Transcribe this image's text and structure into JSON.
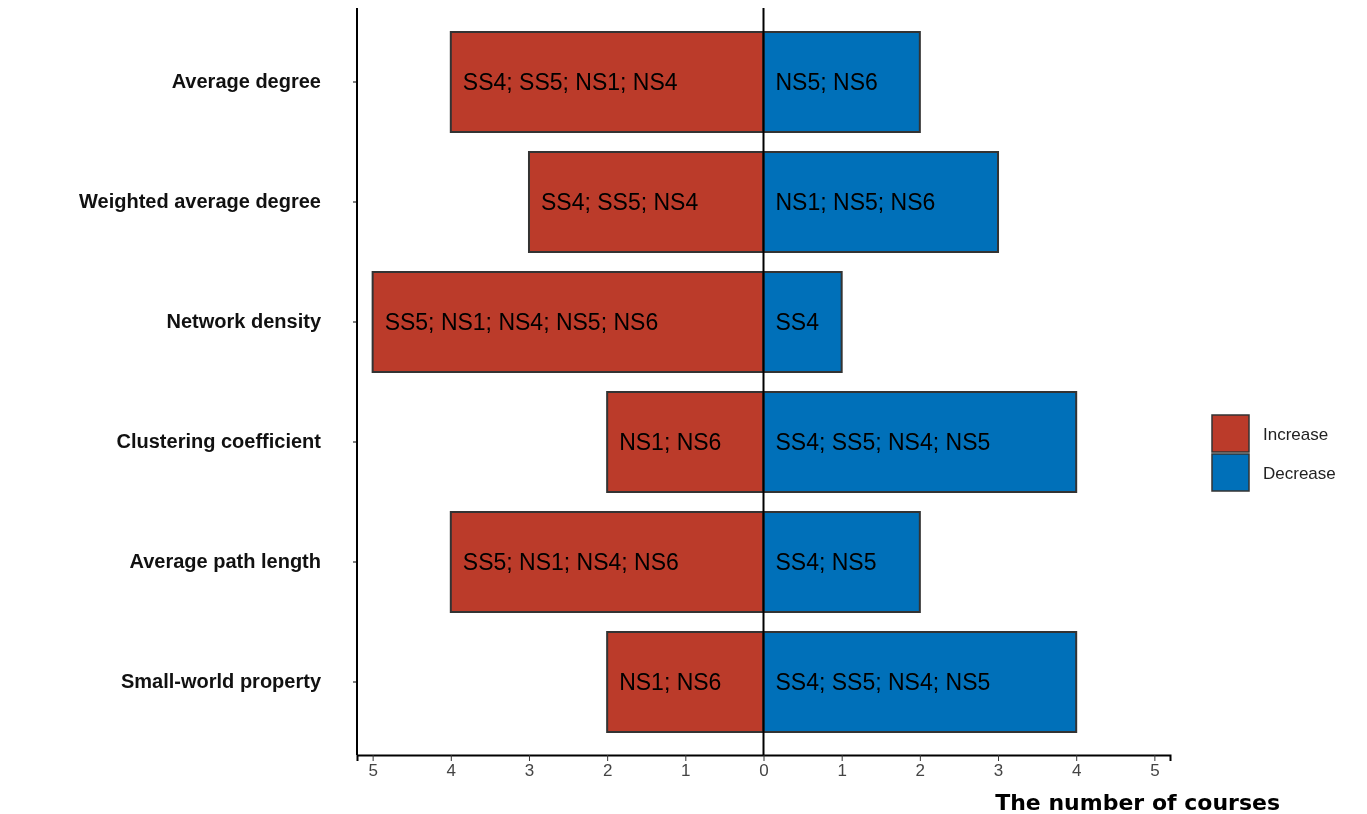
{
  "chart_data": {
    "type": "bar",
    "orientation": "horizontal",
    "stacked": true,
    "xlabel": "The number of courses",
    "categories": [
      "Average degree",
      "Weighted average degree",
      "Network density",
      "Clustering coefficient",
      "Average path length",
      "Small-world property"
    ],
    "series": [
      {
        "name": "Increase",
        "color": "#bb3b2a",
        "values": [
          -4,
          -3,
          -5,
          -2,
          -4,
          -2
        ],
        "value_labels": [
          "SS4; SS5; NS1; NS4",
          "SS4; SS5; NS4",
          "SS5; NS1; NS4; NS5; NS6",
          "NS1; NS6",
          "SS5; NS1; NS4; NS6",
          "NS1; NS6"
        ]
      },
      {
        "name": "Decrease",
        "color": "#0070b9",
        "values": [
          2,
          3,
          1,
          4,
          2,
          4
        ],
        "value_labels": [
          "NS5; NS6",
          "NS1; NS5; NS6",
          "SS4",
          "SS4; SS5; NS4; NS5",
          "SS4; NS5",
          "SS4; SS5; NS4; NS5"
        ]
      }
    ],
    "xlim": [
      -5.2,
      5.2
    ],
    "xticks": [
      {
        "value": -5,
        "label": "5"
      },
      {
        "value": -4,
        "label": "4"
      },
      {
        "value": -3,
        "label": "3"
      },
      {
        "value": -2,
        "label": "2"
      },
      {
        "value": -1,
        "label": "1"
      },
      0,
      1,
      2,
      3,
      4,
      5
    ],
    "ref_lines": [
      {
        "axis": "x",
        "value": 0,
        "color": "#000000"
      }
    ],
    "legend": "right",
    "grid": false
  }
}
